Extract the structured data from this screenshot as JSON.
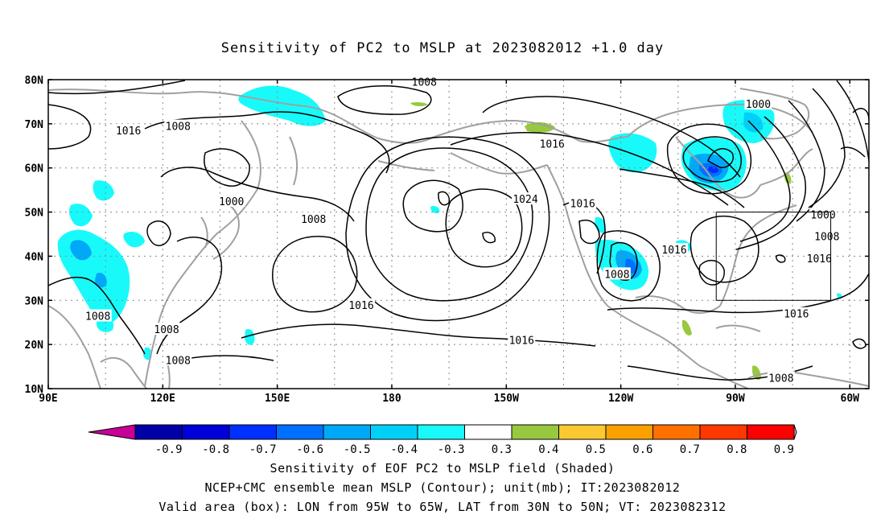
{
  "title": "Sensitivity of PC2 to MSLP at 2023082012 +1.0 day",
  "captions": [
    "Sensitivity of EOF PC2 to MSLP field (Shaded)",
    "NCEP+CMC ensemble mean MSLP (Contour); unit(mb); IT:2023082012",
    "Valid area (box): LON from 95W to 65W, LAT from 30N to 50N; VT: 2023082312"
  ],
  "map": {
    "lon_range": [
      90,
      305
    ],
    "lat_range": [
      10,
      80
    ],
    "lon_ticks": [
      {
        "lon": 90,
        "label": "90E"
      },
      {
        "lon": 120,
        "label": "120E"
      },
      {
        "lon": 150,
        "label": "150E"
      },
      {
        "lon": 180,
        "label": "180"
      },
      {
        "lon": 210,
        "label": "150W"
      },
      {
        "lon": 240,
        "label": "120W"
      },
      {
        "lon": 270,
        "label": "90W"
      },
      {
        "lon": 300,
        "label": "60W"
      }
    ],
    "lat_ticks": [
      {
        "lat": 10,
        "label": "10N"
      },
      {
        "lat": 20,
        "label": "20N"
      },
      {
        "lat": 30,
        "label": "30N"
      },
      {
        "lat": 40,
        "label": "40N"
      },
      {
        "lat": 50,
        "label": "50N"
      },
      {
        "lat": 60,
        "label": "60N"
      },
      {
        "lat": 70,
        "label": "70N"
      },
      {
        "lat": 80,
        "label": "80N"
      }
    ],
    "grid_lon": [
      90,
      105,
      120,
      135,
      150,
      165,
      180,
      195,
      210,
      225,
      240,
      255,
      270,
      285,
      300
    ],
    "grid_lat": [
      20,
      30,
      40,
      50,
      60,
      70
    ],
    "valid_box": {
      "lon": [
        265,
        295
      ],
      "lat": [
        30,
        50
      ]
    },
    "contour_labels": [
      {
        "text": "1008",
        "lon": 188.5,
        "lat": 79.5
      },
      {
        "text": "1016",
        "lon": 111,
        "lat": 68.5
      },
      {
        "text": "1008",
        "lon": 124,
        "lat": 69.5
      },
      {
        "text": "1000",
        "lon": 138,
        "lat": 52.5
      },
      {
        "text": "1008",
        "lon": 159.5,
        "lat": 48.5
      },
      {
        "text": "1016",
        "lon": 222,
        "lat": 65.5
      },
      {
        "text": "1024",
        "lon": 215,
        "lat": 53
      },
      {
        "text": "1016",
        "lon": 230,
        "lat": 52
      },
      {
        "text": "1000",
        "lon": 276,
        "lat": 74.5
      },
      {
        "text": "1000",
        "lon": 293,
        "lat": 49.5
      },
      {
        "text": "1008",
        "lon": 294,
        "lat": 44.5
      },
      {
        "text": "1016",
        "lon": 292,
        "lat": 39.5
      },
      {
        "text": "1016",
        "lon": 254,
        "lat": 41.5
      },
      {
        "text": "1008",
        "lon": 239,
        "lat": 36
      },
      {
        "text": "1016",
        "lon": 172,
        "lat": 29
      },
      {
        "text": "1008",
        "lon": 103,
        "lat": 26.5
      },
      {
        "text": "1008",
        "lon": 121,
        "lat": 23.5
      },
      {
        "text": "1008",
        "lon": 124,
        "lat": 16.5
      },
      {
        "text": "1016",
        "lon": 214,
        "lat": 21
      },
      {
        "text": "1016",
        "lon": 286,
        "lat": 27
      },
      {
        "text": "1008",
        "lon": 282,
        "lat": 12.5
      }
    ]
  },
  "colorbar": {
    "labels": [
      "-0.9",
      "-0.8",
      "-0.7",
      "-0.6",
      "-0.5",
      "-0.4",
      "-0.3",
      "0.3",
      "0.4",
      "0.5",
      "0.6",
      "0.7",
      "0.8",
      "0.9"
    ],
    "colors": [
      "#0000a8",
      "#0000d8",
      "#0030ff",
      "#0070ff",
      "#00a8f8",
      "#00d0f8",
      "#18fafa",
      "#ffffff",
      "#98c840",
      "#fac830",
      "#faa000",
      "#ff7000",
      "#ff3800",
      "#ff0000"
    ],
    "low_end_color": "#c80096",
    "high_end_color": "#f4a0c8"
  }
}
